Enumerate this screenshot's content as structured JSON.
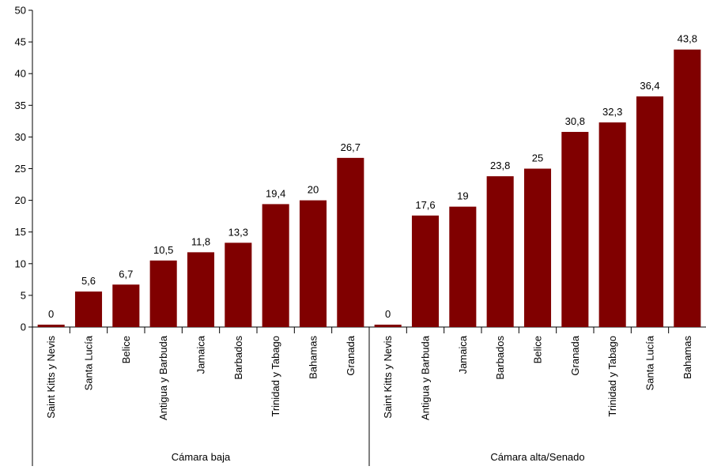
{
  "chart_data": {
    "type": "bar",
    "ylim": [
      0,
      50
    ],
    "yticks": [
      "0",
      "5",
      "10",
      "15",
      "20",
      "25",
      "30",
      "35",
      "40",
      "45",
      "50"
    ],
    "bar_color": "#800000",
    "grid": false,
    "groups": [
      {
        "name": "Cámara baja",
        "categories": [
          "Saint Kitts y Nevis",
          "Santa Lucía",
          "Belice",
          "Antigua y Barbuda",
          "Jamaica",
          "Barbados",
          "Trinidad y Tabago",
          "Bahamas",
          "Granada"
        ],
        "values": [
          0,
          5.6,
          6.7,
          10.5,
          11.8,
          13.3,
          19.4,
          20,
          26.7
        ],
        "labels": [
          "0",
          "5,6",
          "6,7",
          "10,5",
          "11,8",
          "13,3",
          "19,4",
          "20",
          "26,7"
        ]
      },
      {
        "name": "Cámara alta/Senado",
        "categories": [
          "Saint Kitts y Nevis",
          "Antigua y Barbuda",
          "Jamaica",
          "Barbados",
          "Belice",
          "Granada",
          "Trinidad y Tabago",
          "Santa Lucía",
          "Bahamas"
        ],
        "values": [
          0,
          17.6,
          19,
          23.8,
          25,
          30.8,
          32.3,
          36.4,
          43.8
        ],
        "labels": [
          "0",
          "17,6",
          "19",
          "23,8",
          "25",
          "30,8",
          "32,3",
          "36,4",
          "43,8"
        ]
      }
    ]
  }
}
